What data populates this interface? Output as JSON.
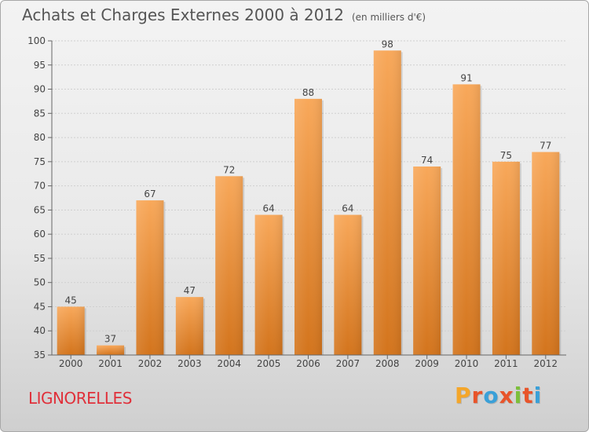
{
  "header": {
    "title": "Achats et Charges Externes 2000 à 2012",
    "subtitle": "(en milliers d'€)"
  },
  "footer": {
    "town": "LIGNORELLES",
    "logo_letters": [
      "P",
      "r",
      "o",
      "x",
      "i",
      "t",
      "i"
    ],
    "logo_colors": [
      "#f4a62a",
      "#e8542a",
      "#3aa0d8",
      "#e8542a",
      "#7cbf3a",
      "#e8542a",
      "#3aa0d8"
    ]
  },
  "chart_data": {
    "type": "bar",
    "title": "Achats et Charges Externes 2000 à 2012",
    "subtitle": "(en milliers d'€)",
    "categories": [
      "2000",
      "2001",
      "2002",
      "2003",
      "2004",
      "2005",
      "2006",
      "2007",
      "2008",
      "2009",
      "2010",
      "2011",
      "2012"
    ],
    "values": [
      45,
      37,
      67,
      47,
      72,
      64,
      88,
      64,
      98,
      74,
      91,
      75,
      77
    ],
    "data_labels": [
      "45",
      "37",
      "67",
      "47",
      "72",
      "64",
      "88",
      "64",
      "98",
      "74",
      "91",
      "75",
      "77"
    ],
    "ylim": [
      35,
      100
    ],
    "yticks": [
      35,
      40,
      45,
      50,
      55,
      60,
      65,
      70,
      75,
      80,
      85,
      90,
      95,
      100
    ],
    "ytick_labels": [
      "35",
      "40",
      "45",
      "50",
      "55",
      "60",
      "65",
      "70",
      "75",
      "80",
      "85",
      "90",
      "95",
      "100"
    ],
    "grid": true,
    "bar_color": "#f29a3e",
    "bar_color_dark": "#d77a1f"
  }
}
